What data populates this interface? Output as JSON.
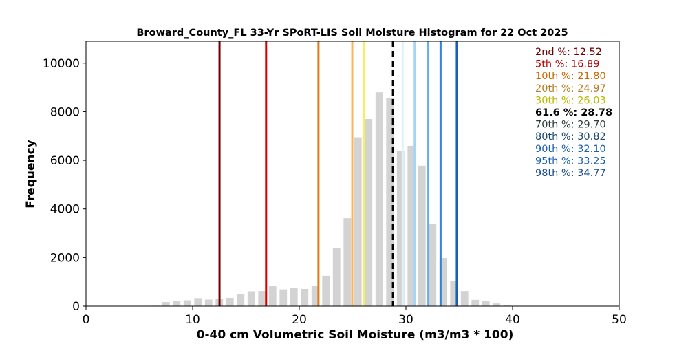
{
  "chart_data": {
    "type": "bar",
    "title": "Broward_County_FL 33-Yr SPoRT-LIS Soil Moisture Histogram for 22 Oct 2025",
    "xlabel": "0-40 cm Volumetric Soil Moisture (m3/m3 * 100)",
    "ylabel": "Frequency",
    "xlim": [
      0,
      50
    ],
    "ylim": [
      0,
      10900
    ],
    "xticks": [
      "0",
      "10",
      "20",
      "30",
      "40",
      "50"
    ],
    "yticks": [
      "0",
      "2000",
      "4000",
      "6000",
      "8000",
      "10000"
    ],
    "bar_color": "#d3d3d3",
    "bins": [
      {
        "x": 6.5,
        "value": 20
      },
      {
        "x": 7.5,
        "value": 170
      },
      {
        "x": 8.5,
        "value": 220
      },
      {
        "x": 9.5,
        "value": 240
      },
      {
        "x": 10.5,
        "value": 330
      },
      {
        "x": 11.5,
        "value": 270
      },
      {
        "x": 12.5,
        "value": 300
      },
      {
        "x": 13.5,
        "value": 340
      },
      {
        "x": 14.5,
        "value": 500
      },
      {
        "x": 15.5,
        "value": 610
      },
      {
        "x": 16.5,
        "value": 620
      },
      {
        "x": 17.5,
        "value": 820
      },
      {
        "x": 18.5,
        "value": 690
      },
      {
        "x": 19.5,
        "value": 760
      },
      {
        "x": 20.5,
        "value": 710
      },
      {
        "x": 21.5,
        "value": 850
      },
      {
        "x": 22.5,
        "value": 1250
      },
      {
        "x": 23.5,
        "value": 2380
      },
      {
        "x": 24.5,
        "value": 3620
      },
      {
        "x": 25.5,
        "value": 6950
      },
      {
        "x": 26.5,
        "value": 7700
      },
      {
        "x": 27.5,
        "value": 8800
      },
      {
        "x": 28.5,
        "value": 8550
      },
      {
        "x": 29.5,
        "value": 6380
      },
      {
        "x": 30.5,
        "value": 6600
      },
      {
        "x": 31.5,
        "value": 5780
      },
      {
        "x": 32.5,
        "value": 3380
      },
      {
        "x": 33.5,
        "value": 1980
      },
      {
        "x": 34.5,
        "value": 1050
      },
      {
        "x": 35.5,
        "value": 620
      },
      {
        "x": 36.5,
        "value": 260
      },
      {
        "x": 37.5,
        "value": 220
      },
      {
        "x": 38.5,
        "value": 110
      },
      {
        "x": 39.5,
        "value": 30
      },
      {
        "x": 40.5,
        "value": 10
      }
    ],
    "percentile_lines": [
      {
        "label": "2nd %: 12.52",
        "value": 12.52,
        "color": "#6b0000",
        "dashed": false
      },
      {
        "label": "5th %: 16.89",
        "value": 16.89,
        "color": "#d40000",
        "dashed": false
      },
      {
        "label": "10th %: 21.80",
        "value": 21.8,
        "color": "#e07a1c",
        "dashed": false
      },
      {
        "label": "20th %: 24.97",
        "value": 24.97,
        "color": "#f7b560",
        "dashed": false
      },
      {
        "label": "30th %: 26.03",
        "value": 26.03,
        "color": "#f2f25a",
        "dashed": false
      },
      {
        "label": "61.6 %: 28.78",
        "value": 28.78,
        "color": "#000000",
        "dashed": true
      },
      {
        "label": "70th %: 29.70",
        "value": 29.7,
        "color": "#dff2fa",
        "dashed": false
      },
      {
        "label": "80th %: 30.82",
        "value": 30.82,
        "color": "#a6d4f2",
        "dashed": false
      },
      {
        "label": "90th %: 32.10",
        "value": 32.1,
        "color": "#66aee6",
        "dashed": false
      },
      {
        "label": "95th %: 33.25",
        "value": 33.25,
        "color": "#2e86d6",
        "dashed": false
      },
      {
        "label": "98th %: 34.77",
        "value": 34.77,
        "color": "#1a5fb4",
        "dashed": false
      }
    ],
    "legend_text_colors": [
      "#6b0000",
      "#b00000",
      "#c96a00",
      "#b87a20",
      "#b8b800",
      "#000000",
      "#2a3a3a",
      "#1a4a70",
      "#1a5fb4",
      "#1a5fb4",
      "#1a4a90"
    ],
    "legend_placement": "top-right",
    "grid": false
  }
}
